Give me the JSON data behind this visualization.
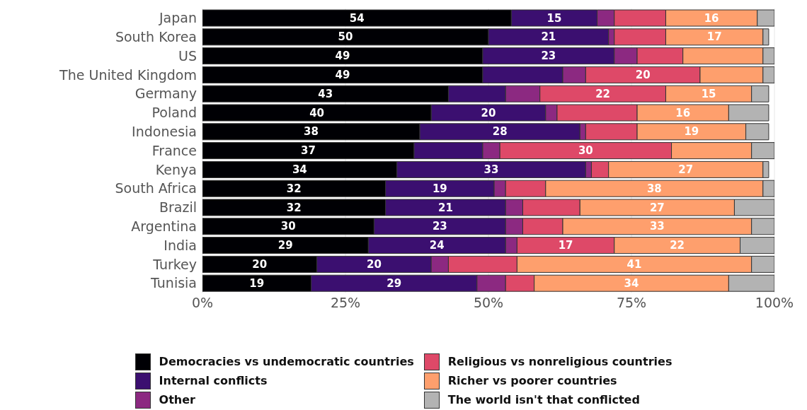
{
  "chart_data": {
    "type": "bar",
    "orientation": "horizontal",
    "stacked": true,
    "categories": [
      "Japan",
      "South Korea",
      "US",
      "The United Kingdom",
      "Germany",
      "Poland",
      "Indonesia",
      "France",
      "Kenya",
      "South Africa",
      "Brazil",
      "Argentina",
      "India",
      "Turkey",
      "Tunisia"
    ],
    "series": [
      {
        "name": "Democracies vs undemocratic countries",
        "color": "#000004",
        "values": [
          54,
          50,
          49,
          49,
          43,
          40,
          38,
          37,
          34,
          32,
          32,
          30,
          29,
          20,
          19
        ],
        "value_labels": [
          "54",
          "50",
          "49",
          "49",
          "43",
          "40",
          "38",
          "37",
          "34",
          "32",
          "32",
          "30",
          "29",
          "20",
          "19"
        ]
      },
      {
        "name": "Internal conflicts",
        "color": "#3b0f70",
        "values": [
          15,
          21,
          23,
          14,
          10,
          20,
          28,
          12,
          33,
          19,
          21,
          23,
          24,
          20,
          29
        ],
        "value_labels": [
          "15",
          "21",
          "23",
          null,
          null,
          "20",
          "28",
          null,
          "33",
          "19",
          "21",
          "23",
          "24",
          "20",
          "29"
        ]
      },
      {
        "name": "Other",
        "color": "#8c2981",
        "values": [
          3,
          1,
          4,
          4,
          6,
          2,
          1,
          3,
          1,
          2,
          3,
          3,
          2,
          3,
          5
        ]
      },
      {
        "name": "Religious vs nonreligious countries",
        "color": "#de4968",
        "values": [
          9,
          9,
          8,
          20,
          22,
          14,
          9,
          30,
          3,
          7,
          10,
          7,
          17,
          12,
          5
        ],
        "value_labels": [
          null,
          null,
          null,
          "20",
          "22",
          null,
          null,
          "30",
          null,
          null,
          null,
          null,
          "17",
          null,
          null
        ]
      },
      {
        "name": "Richer vs poorer countries",
        "color": "#fe9f6d",
        "values": [
          16,
          17,
          14,
          11,
          15,
          16,
          19,
          14,
          27,
          38,
          27,
          33,
          22,
          41,
          34
        ],
        "value_labels": [
          "16",
          "17",
          null,
          null,
          "15",
          "16",
          "19",
          null,
          "27",
          "38",
          "27",
          "33",
          "22",
          "41",
          "34"
        ]
      },
      {
        "name": "The world isn't that conflicted",
        "color": "#b3b3b3",
        "values": [
          3,
          1,
          2,
          2,
          3,
          7,
          4,
          4,
          1,
          2,
          7,
          4,
          6,
          4,
          8
        ]
      }
    ],
    "xlim": [
      0,
      100
    ],
    "xticks": [
      {
        "value": 0,
        "label": "0%"
      },
      {
        "value": 25,
        "label": "25%"
      },
      {
        "value": 50,
        "label": "50%"
      },
      {
        "value": 75,
        "label": "75%"
      },
      {
        "value": 100,
        "label": "100%"
      }
    ],
    "grid": "x",
    "legend": "bottom"
  }
}
